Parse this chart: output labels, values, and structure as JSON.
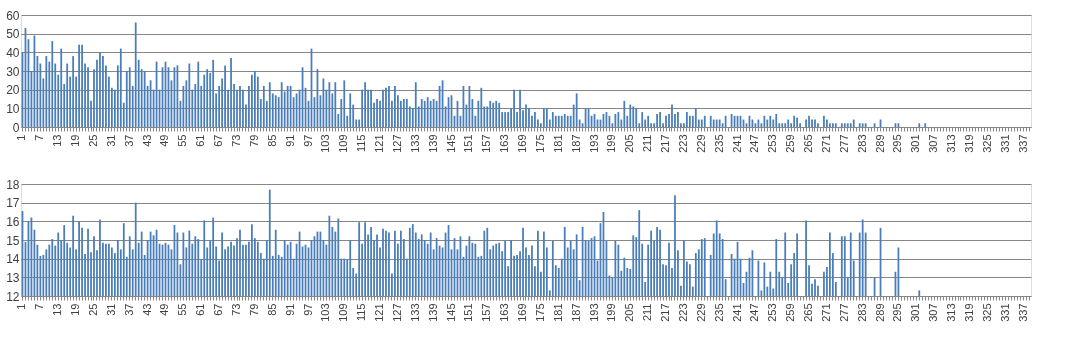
{
  "chart_data": [
    {
      "type": "bar",
      "color": "#4a7ebb",
      "ylim": [
        0,
        60
      ],
      "yticks": [
        0,
        10,
        20,
        30,
        40,
        50,
        60
      ],
      "grid": "y",
      "categories": [
        "1",
        null,
        null,
        null,
        null,
        null,
        "7",
        null,
        null,
        null,
        null,
        null,
        "13",
        null,
        null,
        null,
        null,
        null,
        "19",
        null,
        null,
        null,
        null,
        null,
        "25",
        null,
        null,
        null,
        null,
        null,
        "31",
        null,
        null,
        null,
        null,
        null,
        "37",
        null,
        null,
        null,
        null,
        null,
        "43",
        null,
        null,
        null,
        null,
        null,
        "49",
        null,
        null,
        null,
        null,
        null,
        "55",
        null,
        null,
        null,
        null,
        null,
        "61",
        null,
        null,
        null,
        null,
        null,
        "67",
        null,
        null,
        null,
        null,
        null,
        "73",
        null,
        null,
        null,
        null,
        null,
        "79",
        null,
        null,
        null,
        null,
        null,
        "85",
        null,
        null,
        null,
        null,
        null,
        "91",
        null,
        null,
        null,
        null,
        null,
        "97",
        null,
        null,
        null,
        null,
        null,
        "103",
        null,
        null,
        null,
        null,
        null,
        "109",
        null,
        null,
        null,
        null,
        null,
        "115",
        null,
        null,
        null,
        null,
        null,
        "121",
        null,
        null,
        null,
        null,
        null,
        "127",
        null,
        null,
        null,
        null,
        null,
        "133",
        null,
        null,
        null,
        null,
        null,
        "139",
        null,
        null,
        null,
        null,
        null,
        "145",
        null,
        null,
        null,
        null,
        null,
        "151",
        null,
        null,
        null,
        null,
        null,
        "157",
        null,
        null,
        null,
        null,
        null,
        "163",
        null,
        null,
        null,
        null,
        null,
        "169",
        null,
        null,
        null,
        null,
        null,
        "175",
        null,
        null,
        null,
        null,
        null,
        "181",
        null,
        null,
        null,
        null,
        null,
        "187",
        null,
        null,
        null,
        null,
        null,
        "193",
        null,
        null,
        null,
        null,
        null,
        "199",
        null,
        null,
        null,
        null,
        null,
        "205",
        null,
        null,
        null,
        null,
        null,
        "211",
        null,
        null,
        null,
        null,
        null,
        "217",
        null,
        null,
        null,
        null,
        null,
        "223",
        null,
        null,
        null,
        null,
        null,
        "229",
        null,
        null,
        null,
        null,
        null,
        "235",
        null,
        null,
        null,
        null,
        null,
        "241",
        null,
        null,
        null,
        null,
        null,
        "247",
        null,
        null,
        null,
        null,
        null,
        "253",
        null,
        null,
        null,
        null,
        null,
        "259",
        null,
        null,
        null,
        null,
        null,
        "265",
        null,
        null,
        null,
        null,
        null,
        "271",
        null,
        null,
        null,
        null,
        null,
        "277",
        null,
        null,
        null,
        null,
        null,
        "283",
        null,
        null,
        null,
        null,
        null,
        "289",
        null,
        null,
        null,
        null,
        null,
        "295",
        null,
        null,
        null,
        null,
        null,
        "301",
        null,
        null,
        null,
        null,
        null,
        "307",
        null,
        null,
        null,
        null,
        null,
        "313",
        null,
        null,
        null,
        null,
        null,
        "319",
        null,
        null,
        null,
        null,
        null,
        "325",
        null,
        null,
        null,
        null,
        null,
        "331",
        null,
        null,
        null,
        null,
        null,
        "337",
        null,
        null
      ],
      "values": [
        40,
        53,
        47,
        30,
        49,
        38,
        34,
        26,
        38,
        35,
        46,
        34,
        28,
        42,
        23,
        34,
        27,
        38,
        27,
        44,
        44,
        34,
        32,
        14,
        31,
        36,
        40,
        38,
        33,
        27,
        21,
        20,
        33,
        42,
        13,
        30,
        32,
        22,
        56,
        36,
        31,
        30,
        22,
        25,
        20,
        35,
        20,
        32,
        35,
        32,
        25,
        32,
        33,
        14,
        22,
        25,
        34,
        20,
        23,
        35,
        22,
        28,
        31,
        29,
        36,
        18,
        22,
        26,
        33,
        20,
        37,
        23,
        20,
        22,
        20,
        12,
        22,
        28,
        30,
        27,
        15,
        22,
        14,
        24,
        18,
        17,
        16,
        24,
        19,
        22,
        22,
        16,
        18,
        20,
        32,
        21,
        14,
        42,
        16,
        31,
        17,
        26,
        20,
        24,
        18,
        24,
        7,
        15,
        25,
        6,
        18,
        12,
        4,
        4,
        20,
        24,
        20,
        20,
        13,
        15,
        14,
        20,
        21,
        22,
        14,
        22,
        17,
        14,
        15,
        15,
        11,
        10,
        24,
        11,
        15,
        14,
        16,
        14,
        15,
        14,
        22,
        25,
        11,
        16,
        17,
        6,
        14,
        6,
        22,
        12,
        22,
        15,
        6,
        14,
        21,
        11,
        11,
        14,
        13,
        14,
        13,
        8,
        8,
        8,
        10,
        20,
        8,
        20,
        9,
        12,
        10,
        6,
        8,
        4,
        2,
        10,
        10,
        4,
        8,
        6,
        6,
        6,
        7,
        6,
        6,
        12,
        18,
        4,
        2,
        10,
        10,
        6,
        7,
        4,
        4,
        7,
        8,
        6,
        2,
        7,
        8,
        4,
        14,
        6,
        12,
        11,
        10,
        2,
        8,
        4,
        6,
        2,
        2,
        7,
        8,
        2,
        6,
        7,
        12,
        7,
        8,
        2,
        2,
        8,
        6,
        6,
        10,
        4,
        4,
        6,
        null,
        6,
        4,
        4,
        4,
        2,
        6,
        null,
        7,
        6,
        6,
        6,
        4,
        2,
        6,
        4,
        2,
        4,
        2,
        6,
        4,
        6,
        4,
        7,
        2,
        2,
        2,
        4,
        2,
        6,
        5,
        2,
        null,
        4,
        6,
        4,
        4,
        2,
        null,
        6,
        4,
        2,
        2,
        2,
        null,
        2,
        2,
        2,
        2,
        4,
        null,
        2,
        2,
        2,
        null,
        null,
        2,
        null,
        4,
        null,
        null,
        null,
        null,
        2,
        2,
        null,
        null,
        null,
        null,
        null,
        null,
        2,
        null,
        2,
        null,
        null,
        null,
        null,
        null,
        null,
        null,
        null,
        null,
        null,
        null,
        null,
        null,
        null,
        null,
        null,
        null,
        null,
        null,
        null,
        null,
        null,
        null,
        null,
        null,
        null,
        null,
        null,
        null,
        null,
        null,
        null,
        null,
        null,
        null
      ]
    },
    {
      "type": "bar",
      "color": "#4a7ebb",
      "ylim": [
        12,
        18
      ],
      "yticks": [
        12,
        13,
        14,
        15,
        16,
        17,
        18
      ],
      "grid": "y",
      "categories": [
        "1",
        null,
        null,
        null,
        null,
        null,
        "7",
        null,
        null,
        null,
        null,
        null,
        "13",
        null,
        null,
        null,
        null,
        null,
        "19",
        null,
        null,
        null,
        null,
        null,
        "25",
        null,
        null,
        null,
        null,
        null,
        "31",
        null,
        null,
        null,
        null,
        null,
        "37",
        null,
        null,
        null,
        null,
        null,
        "43",
        null,
        null,
        null,
        null,
        null,
        "49",
        null,
        null,
        null,
        null,
        null,
        "55",
        null,
        null,
        null,
        null,
        null,
        "61",
        null,
        null,
        null,
        null,
        null,
        "67",
        null,
        null,
        null,
        null,
        null,
        "73",
        null,
        null,
        null,
        null,
        null,
        "79",
        null,
        null,
        null,
        null,
        null,
        "85",
        null,
        null,
        null,
        null,
        null,
        "91",
        null,
        null,
        null,
        null,
        null,
        "97",
        null,
        null,
        null,
        null,
        null,
        "103",
        null,
        null,
        null,
        null,
        null,
        "109",
        null,
        null,
        null,
        null,
        null,
        "115",
        null,
        null,
        null,
        null,
        null,
        "121",
        null,
        null,
        null,
        null,
        null,
        "127",
        null,
        null,
        null,
        null,
        null,
        "133",
        null,
        null,
        null,
        null,
        null,
        "139",
        null,
        null,
        null,
        null,
        null,
        "145",
        null,
        null,
        null,
        null,
        null,
        "151",
        null,
        null,
        null,
        null,
        null,
        "157",
        null,
        null,
        null,
        null,
        null,
        "163",
        null,
        null,
        null,
        null,
        null,
        "169",
        null,
        null,
        null,
        null,
        null,
        "175",
        null,
        null,
        null,
        null,
        null,
        "181",
        null,
        null,
        null,
        null,
        null,
        "187",
        null,
        null,
        null,
        null,
        null,
        "193",
        null,
        null,
        null,
        null,
        null,
        "199",
        null,
        null,
        null,
        null,
        null,
        "205",
        null,
        null,
        null,
        null,
        null,
        "211",
        null,
        null,
        null,
        null,
        null,
        "217",
        null,
        null,
        null,
        null,
        null,
        "223",
        null,
        null,
        null,
        null,
        null,
        "229",
        null,
        null,
        null,
        null,
        null,
        "235",
        null,
        null,
        null,
        null,
        null,
        "241",
        null,
        null,
        null,
        null,
        null,
        "247",
        null,
        null,
        null,
        null,
        null,
        "253",
        null,
        null,
        null,
        null,
        null,
        "259",
        null,
        null,
        null,
        null,
        null,
        "265",
        null,
        null,
        null,
        null,
        null,
        "271",
        null,
        null,
        null,
        null,
        null,
        "277",
        null,
        null,
        null,
        null,
        null,
        "283",
        null,
        null,
        null,
        null,
        null,
        "289",
        null,
        null,
        null,
        null,
        null,
        "295",
        null,
        null,
        null,
        null,
        null,
        "301",
        null,
        null,
        null,
        null,
        null,
        "307",
        null,
        null,
        null,
        null,
        null,
        "313",
        null,
        null,
        null,
        null,
        null,
        "319",
        null,
        null,
        null,
        null,
        null,
        "325",
        null,
        null,
        null,
        null,
        null,
        "331",
        null,
        null,
        null,
        null,
        null,
        "337",
        null,
        null
      ],
      "values": [
        16.55,
        14.9,
        16.0,
        16.2,
        15.55,
        14.75,
        14.15,
        14.2,
        14.5,
        14.75,
        15.05,
        14.7,
        15.4,
        15.0,
        15.8,
        14.85,
        14.6,
        16.3,
        14.5,
        16.0,
        15.65,
        14.25,
        15.6,
        14.35,
        15.2,
        14.45,
        16.1,
        14.85,
        14.8,
        14.8,
        14.6,
        14.3,
        15.0,
        14.5,
        15.9,
        14.1,
        15.2,
        14.5,
        17.0,
        14.85,
        15.45,
        14.2,
        15.0,
        15.45,
        15.25,
        15.55,
        14.8,
        14.75,
        14.85,
        14.75,
        14.5,
        15.8,
        15.4,
        13.7,
        15.4,
        14.6,
        15.5,
        14.8,
        15.2,
        15.05,
        13.95,
        16.05,
        14.6,
        15.0,
        16.2,
        14.65,
        13.9,
        15.4,
        14.5,
        14.65,
        14.9,
        14.7,
        15.1,
        15.55,
        14.75,
        14.75,
        14.9,
        15.85,
        15.1,
        14.9,
        14.3,
        14.0,
        15.0,
        17.7,
        14.15,
        15.55,
        14.2,
        14.1,
        15.0,
        14.75,
        14.9,
        14.0,
        14.8,
        15.45,
        14.65,
        14.75,
        14.6,
        15.0,
        15.2,
        15.45,
        15.45,
        15.0,
        14.75,
        16.3,
        15.7,
        15.45,
        16.15,
        14.0,
        14.0,
        13.95,
        15.0,
        13.5,
        13.2,
        15.95,
        14.8,
        15.95,
        15.3,
        15.7,
        15.0,
        15.3,
        14.6,
        15.6,
        15.5,
        15.4,
        13.2,
        15.5,
        14.8,
        15.5,
        15.05,
        14.0,
        15.65,
        15.85,
        15.4,
        15.05,
        15.3,
        15.0,
        14.8,
        15.4,
        14.5,
        15.1,
        14.7,
        14.6,
        15.4,
        15.8,
        14.5,
        15.1,
        14.5,
        15.2,
        14.1,
        14.7,
        15.2,
        14.85,
        14.8,
        14.1,
        14.15,
        15.5,
        15.65,
        14.5,
        14.7,
        14.8,
        14.85,
        14.4,
        14.95,
        13.6,
        15.0,
        14.15,
        14.2,
        14.4,
        15.65,
        14.6,
        14.2,
        14.7,
        13.6,
        15.5,
        13.3,
        15.45,
        14.6,
        12.3,
        14.95,
        13.65,
        13.5,
        14.0,
        15.7,
        14.6,
        14.95,
        14.5,
        15.3,
        12.85,
        15.7,
        15.0,
        14.95,
        15.1,
        15.2,
        13.9,
        15.9,
        16.5,
        14.95,
        13.1,
        13.0,
        14.95,
        14.75,
        13.35,
        14.05,
        13.5,
        13.45,
        15.25,
        15.15,
        16.6,
        14.8,
        12.75,
        14.75,
        15.5,
        14.95,
        15.7,
        15.55,
        13.7,
        13.65,
        14.85,
        13.5,
        17.4,
        14.45,
        12.55,
        15.0,
        13.85,
        13.7,
        12.5,
        14.3,
        14.5,
        15.05,
        15.1,
        null,
        14.2,
        15.35,
        16.05,
        15.35,
        15.05,
        12.9,
        null,
        14.25,
        14.0,
        14.9,
        14.0,
        12.7,
        13.3,
        14.05,
        14.45,
        null,
        13.9,
        12.3,
        13.8,
        12.5,
        13.3,
        12.4,
        15.05,
        13.3,
        13.0,
        15.4,
        12.7,
        13.7,
        14.3,
        15.35,
        null,
        null,
        16.05,
        13.65,
        12.65,
        12.9,
        12.55,
        null,
        13.3,
        13.55,
        15.4,
        14.3,
        12.75,
        null,
        15.2,
        15.2,
        13.0,
        15.4,
        13.9,
        null,
        15.4,
        16.1,
        15.4,
        null,
        null,
        13.0,
        null,
        15.65,
        null,
        null,
        null,
        null,
        13.3,
        14.6,
        null,
        null,
        null,
        null,
        null,
        null,
        12.3,
        null,
        null,
        null,
        null,
        null,
        null,
        null,
        null,
        null,
        null,
        null,
        null,
        null,
        null,
        null,
        null,
        null,
        null,
        null,
        null,
        null,
        null,
        null,
        null,
        null,
        null,
        null,
        null,
        null,
        null,
        null,
        null,
        null,
        null,
        null,
        null,
        null
      ]
    }
  ]
}
